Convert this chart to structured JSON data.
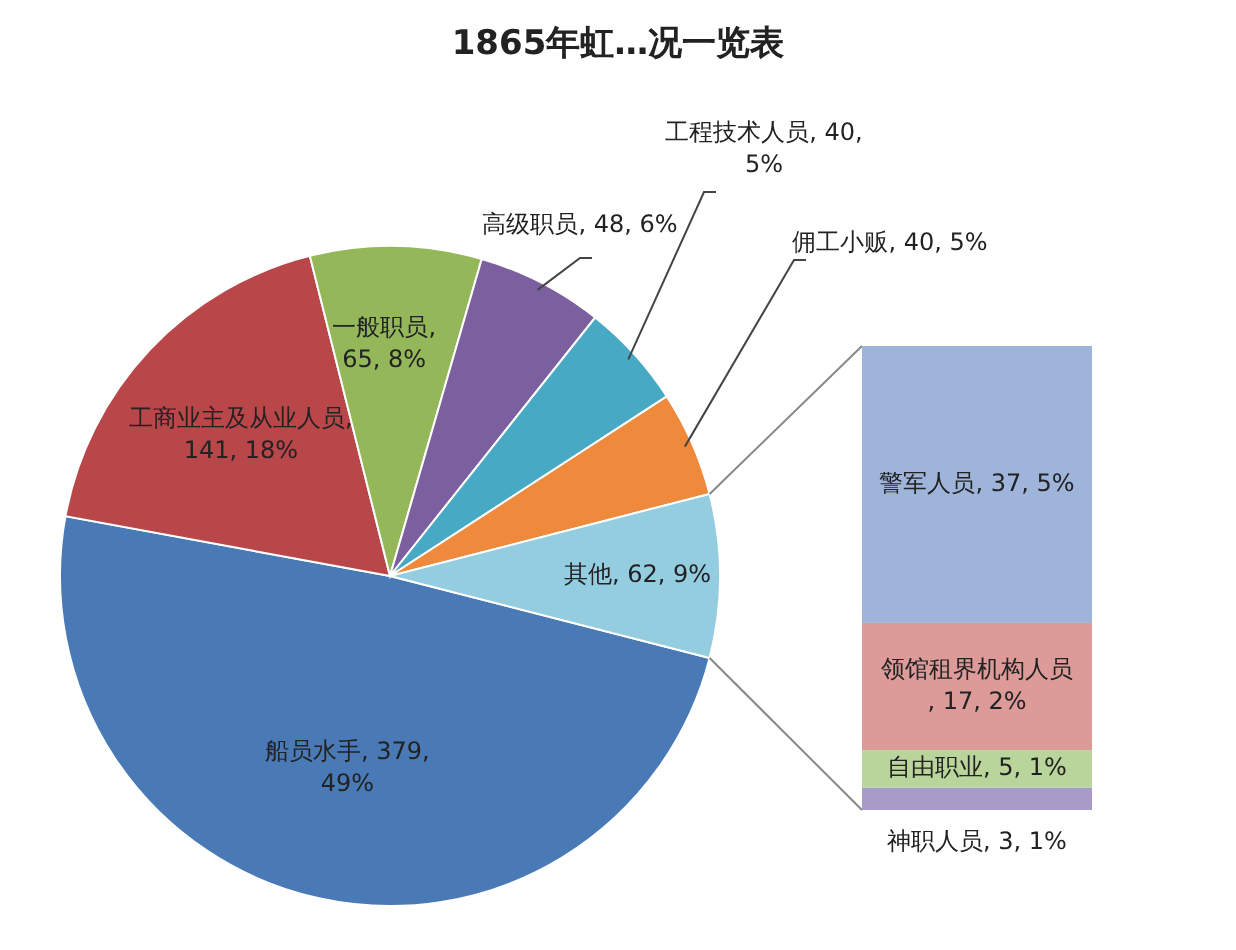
{
  "chart_data": [
    {
      "type": "pie",
      "title": "1865年虹…况一览表",
      "categories": [
        "船员水手",
        "工商业主及从业人员",
        "一般职员",
        "高级职员",
        "工程技术人员",
        "佣工小贩",
        "其他"
      ],
      "values": [
        379,
        141,
        65,
        48,
        40,
        40,
        62
      ],
      "value_labels": [
        ", 379, 49%",
        ", 141, 18%",
        ", 65, 8%",
        ", 48, 6%",
        ", 40, 5%",
        ", 40, 5%",
        ", 62, 9%"
      ],
      "colors": [
        "#4a7ab5",
        "#b9474a",
        "#94b75a",
        "#7b5f9e",
        "#48a9c4",
        "#ef8a3c",
        "#94cce0"
      ]
    },
    {
      "type": "bar",
      "stacked": true,
      "categories": [
        null
      ],
      "series": [
        {
          "name": "神职人员",
          "color": "#a89bc7",
          "values": [
            3
          ],
          "value_labels": [
            ", 3, 1%"
          ]
        },
        {
          "name": "自由职业",
          "color": "#b9d59c",
          "values": [
            5
          ],
          "value_labels": [
            ", 5, 1%"
          ]
        },
        {
          "name": "领馆租界机构人员",
          "color": "#dc9a99",
          "values": [
            17
          ],
          "value_labels": [
            ", 17, 2%"
          ]
        },
        {
          "name": "警军人员",
          "color": "#9fb4da",
          "values": [
            37
          ],
          "value_labels": [
            ", 37, 5%"
          ]
        }
      ]
    }
  ]
}
